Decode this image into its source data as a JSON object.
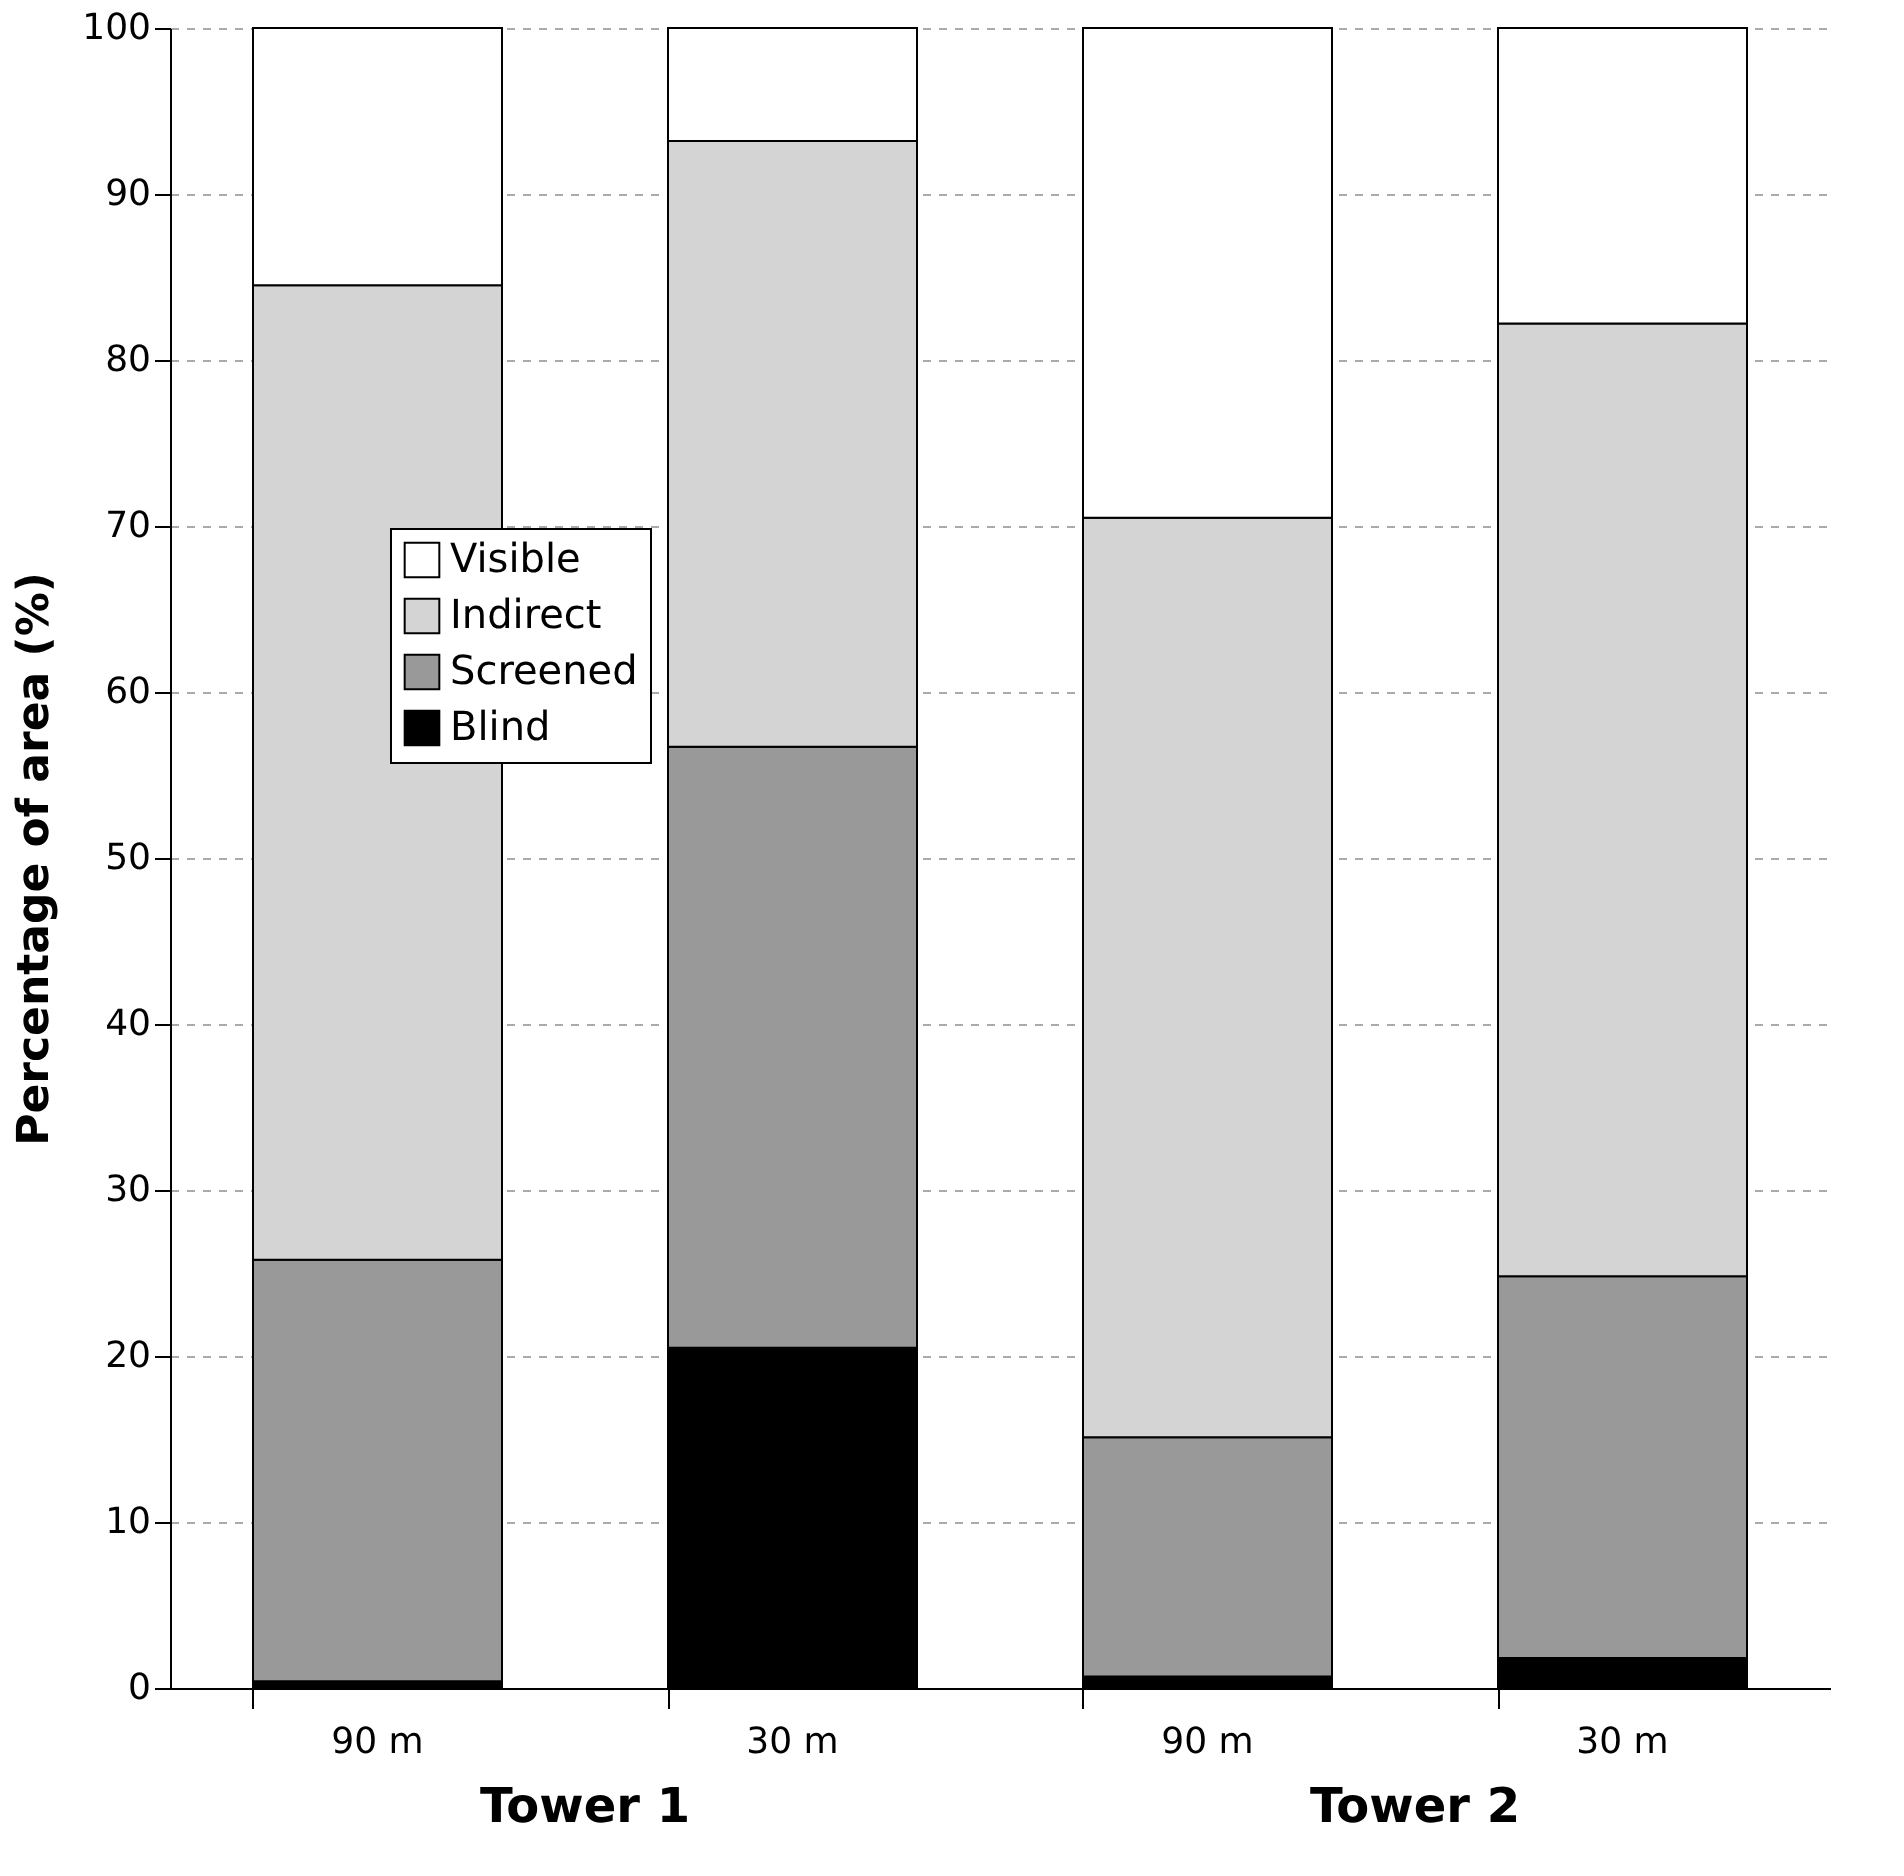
{
  "chart_data": {
    "type": "bar",
    "stacked": true,
    "ylabel": "Percentage of area (%)",
    "categories": [
      "90 m",
      "30 m",
      "90 m",
      "30 m"
    ],
    "annotations": [
      "Tower 1",
      "Tower 2"
    ],
    "series": [
      {
        "name": "Blind",
        "color": "#000000",
        "values": [
          0.4,
          20.5,
          0.7,
          1.8
        ]
      },
      {
        "name": "Screened",
        "color": "#999999",
        "values": [
          25.4,
          36.2,
          14.4,
          23.0
        ]
      },
      {
        "name": "Indirect",
        "color": "#d4d4d4",
        "values": [
          58.7,
          36.5,
          55.4,
          57.4
        ]
      },
      {
        "name": "Visible",
        "color": "#ffffff",
        "values": [
          15.5,
          6.8,
          29.5,
          17.8
        ]
      }
    ],
    "ylim": [
      0,
      100
    ],
    "yticks": [
      0,
      10,
      20,
      30,
      40,
      50,
      60,
      70,
      80,
      90,
      100
    ],
    "grid": "y",
    "legend": "left"
  }
}
